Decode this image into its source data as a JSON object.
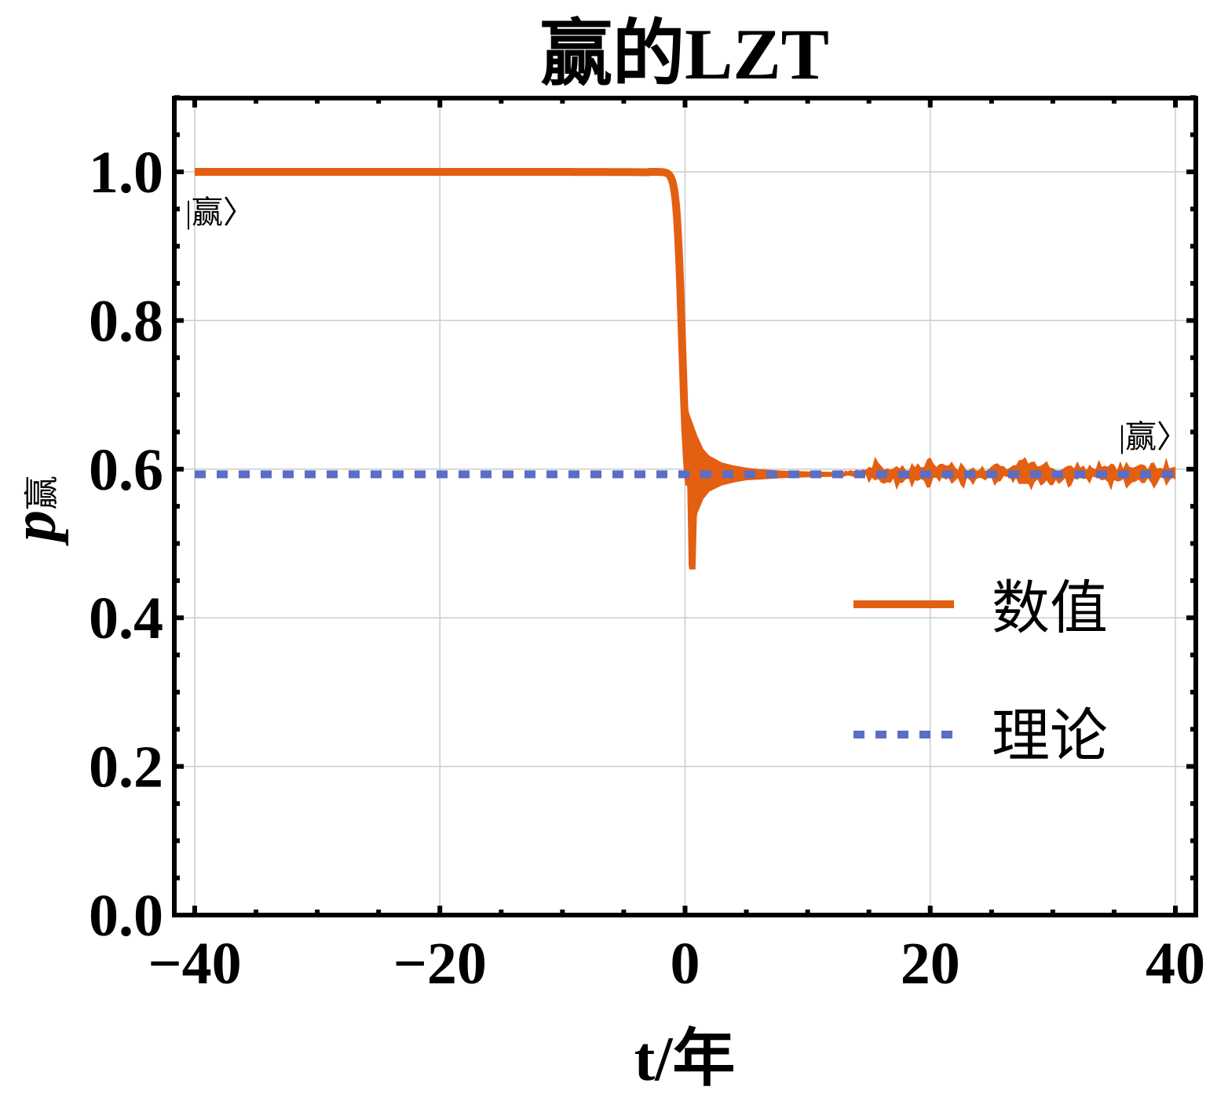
{
  "chart_data": {
    "type": "line",
    "title": "赢的LZT",
    "xlabel": "t/年",
    "ylabel": "p赢",
    "ylabel_main": "p",
    "ylabel_sub": "赢",
    "xlim": [
      -41.7,
      41.7
    ],
    "ylim": [
      0,
      1.1
    ],
    "grid": true,
    "x_ticks": [
      -40,
      -20,
      0,
      20,
      40
    ],
    "x_tick_labels": [
      "−40",
      "−20",
      "0",
      "20",
      "40"
    ],
    "y_ticks": [
      0.0,
      0.2,
      0.4,
      0.6,
      0.8,
      1.0
    ],
    "y_tick_labels": [
      "0.0",
      "0.2",
      "0.4",
      "0.6",
      "0.8",
      "1.0"
    ],
    "legend_position": "right-center inside plot",
    "series": [
      {
        "name": "数值",
        "color": "#E35F11",
        "style": "solid",
        "description": "Numerical probability: ~1.0 for t<-2, sharp drop near t=0, damped oscillation (max ~0.677, min ~0.465 at t≈0.5) settling to ~0.593 by t≈13, then small noisy fluctuations (±0.015) to t=40",
        "x": [
          -40,
          -30,
          -20,
          -10,
          -5,
          -3,
          -2,
          -1.5,
          -1,
          -0.5,
          -0.2,
          0,
          0.3,
          0.5,
          1,
          1.5,
          2,
          3,
          4,
          5,
          6,
          8,
          10,
          13,
          15,
          20,
          25,
          30,
          35,
          40
        ],
        "values": [
          1.0,
          1.0,
          1.0,
          0.999,
          0.998,
          0.996,
          0.992,
          0.985,
          0.97,
          0.92,
          0.84,
          0.72,
          0.62,
          0.55,
          0.6,
          0.605,
          0.6,
          0.598,
          0.596,
          0.595,
          0.594,
          0.594,
          0.593,
          0.593,
          0.594,
          0.595,
          0.594,
          0.596,
          0.594,
          0.596
        ],
        "envelope": {
          "x": [
            0.3,
            1,
            1.5,
            2,
            3,
            4,
            5,
            6,
            8,
            10,
            13
          ],
          "upper": [
            0.677,
            0.645,
            0.627,
            0.618,
            0.609,
            0.605,
            0.602,
            0.6,
            0.598,
            0.597,
            0.596
          ],
          "lower": [
            0.465,
            0.54,
            0.56,
            0.57,
            0.578,
            0.582,
            0.585,
            0.586,
            0.588,
            0.589,
            0.59
          ]
        }
      },
      {
        "name": "理论",
        "color": "#5B6DC4",
        "style": "dotted",
        "x": [
          -40,
          40
        ],
        "values": [
          0.593,
          0.593
        ]
      }
    ],
    "annotations": [
      {
        "text": "|赢〉",
        "x": -40,
        "y": 0.95
      },
      {
        "text": "|赢〉",
        "x": 37.5,
        "y": 0.645
      }
    ]
  },
  "legend": {
    "items": [
      {
        "label": "数值",
        "color": "#E35F11",
        "style": "solid"
      },
      {
        "label": "理论",
        "color": "#5B6DC4",
        "style": "dotted"
      }
    ]
  },
  "annotations": {
    "left_ket": "|赢〉",
    "right_ket": "|赢〉"
  }
}
